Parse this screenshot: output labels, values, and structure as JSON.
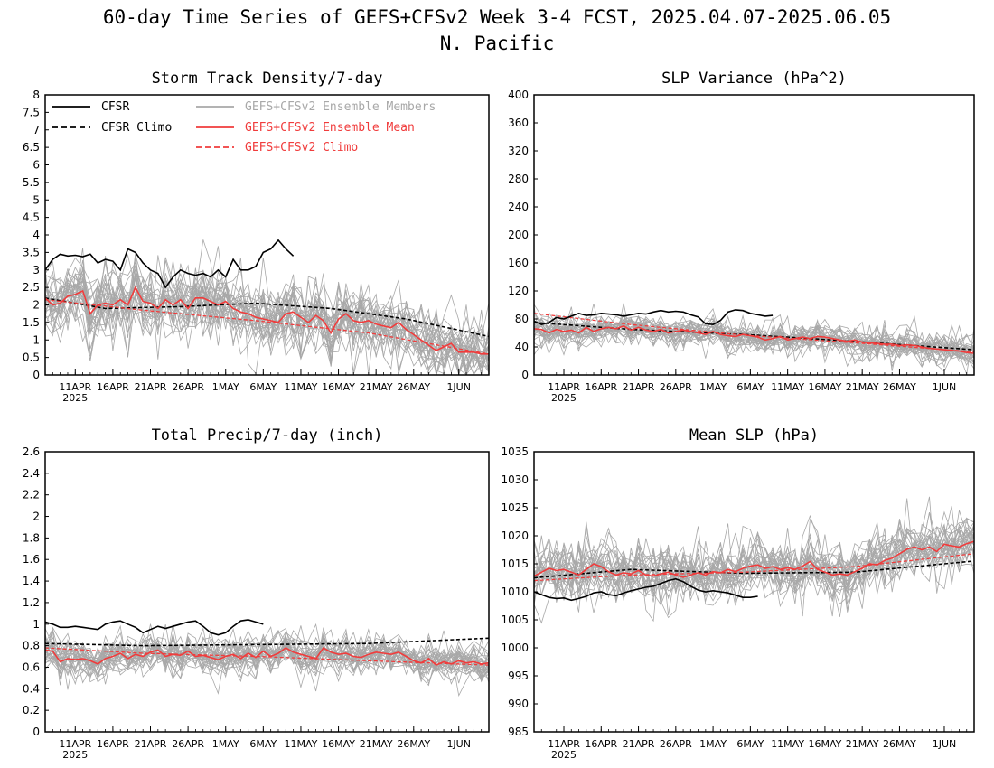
{
  "figure": {
    "title_line1": "60-day Time Series of GEFS+CFSv2 Week 3-4 FCST, 2025.04.07-2025.06.05",
    "title_line2": "N. Pacific"
  },
  "colors": {
    "cfsr": "#000000",
    "members": "#a8a8a8",
    "ens_mean": "#f03c3c",
    "legend_members_text": "#a8a8a8",
    "legend_red_text": "#f03c3c"
  },
  "legend": {
    "placement": "top-left of first panel",
    "entries": [
      {
        "key": "cfsr",
        "label": "CFSR",
        "style": "solid",
        "color": "#000000"
      },
      {
        "key": "cfsr_climo",
        "label": "CFSR Climo",
        "style": "dashed",
        "color": "#000000"
      },
      {
        "key": "members",
        "label": "GEFS+CFSv2 Ensemble Members",
        "style": "solid",
        "color": "#a8a8a8"
      },
      {
        "key": "ens_mean",
        "label": "GEFS+CFSv2 Ensemble Mean",
        "style": "solid",
        "color": "#f03c3c"
      },
      {
        "key": "ens_climo",
        "label": "GEFS+CFSv2 Climo",
        "style": "dashed",
        "color": "#f03c3c"
      }
    ]
  },
  "chart_data": [
    {
      "type": "line",
      "title": "Storm Track Density/7-day",
      "xlim": [
        "2025-04-07",
        "2025-06-05"
      ],
      "xticks": [
        {
          "date": "2025-04-11",
          "label": "11APR",
          "sub": "2025"
        },
        {
          "date": "2025-04-16",
          "label": "16APR",
          "sub": ""
        },
        {
          "date": "2025-04-21",
          "label": "21APR",
          "sub": ""
        },
        {
          "date": "2025-04-26",
          "label": "26APR",
          "sub": ""
        },
        {
          "date": "2025-05-01",
          "label": "1MAY",
          "sub": ""
        },
        {
          "date": "2025-05-06",
          "label": "6MAY",
          "sub": ""
        },
        {
          "date": "2025-05-11",
          "label": "11MAY",
          "sub": ""
        },
        {
          "date": "2025-05-16",
          "label": "16MAY",
          "sub": ""
        },
        {
          "date": "2025-05-21",
          "label": "21MAY",
          "sub": ""
        },
        {
          "date": "2025-05-26",
          "label": "26MAY",
          "sub": ""
        },
        {
          "date": "2025-06-01",
          "label": "1JUN",
          "sub": ""
        }
      ],
      "ylim": [
        0,
        8
      ],
      "yticks": [
        "0",
        "0.5",
        "1",
        "1.5",
        "2",
        "2.5",
        "3",
        "3.5",
        "4",
        "4.5",
        "5",
        "5.5",
        "6",
        "6.5",
        "7",
        "7.5",
        "8"
      ],
      "show_legend": true,
      "cfsr": {
        "start": "2025-04-07",
        "values": [
          3.0,
          3.3,
          3.45,
          3.4,
          3.42,
          3.38,
          3.45,
          3.2,
          3.3,
          3.25,
          3.0,
          3.6,
          3.5,
          3.2,
          3.0,
          2.9,
          2.5,
          2.8,
          3.0,
          2.9,
          2.85,
          2.9,
          2.8,
          3.0,
          2.8,
          3.3,
          3.0,
          3.0,
          3.1,
          3.5,
          3.6,
          3.85,
          3.6,
          3.4
        ]
      },
      "cfsr_climo": {
        "x": [
          "2025-04-07",
          "2025-04-15",
          "2025-04-25",
          "2025-05-05",
          "2025-05-15",
          "2025-05-25",
          "2025-06-05"
        ],
        "values": [
          2.2,
          1.9,
          1.95,
          2.05,
          1.9,
          1.6,
          1.1
        ]
      },
      "ens_climo": {
        "x": [
          "2025-04-07",
          "2025-04-20",
          "2025-05-05",
          "2025-05-20",
          "2025-06-05"
        ],
        "values": [
          2.15,
          1.85,
          1.55,
          1.2,
          0.6
        ]
      },
      "ens_mean": {
        "start": "2025-04-07",
        "values": [
          2.2,
          2.0,
          2.05,
          2.25,
          2.3,
          2.4,
          1.75,
          2.0,
          2.05,
          2.0,
          2.15,
          2.0,
          2.5,
          2.1,
          2.05,
          1.9,
          2.15,
          2.0,
          2.15,
          1.9,
          2.2,
          2.2,
          2.1,
          2.0,
          2.1,
          1.9,
          1.8,
          1.75,
          1.65,
          1.6,
          1.55,
          1.5,
          1.75,
          1.8,
          1.65,
          1.5,
          1.7,
          1.55,
          1.2,
          1.6,
          1.75,
          1.55,
          1.5,
          1.55,
          1.45,
          1.4,
          1.35,
          1.5,
          1.3,
          1.15,
          1.0,
          0.85,
          0.7,
          0.8,
          0.9,
          0.65,
          0.65,
          0.65,
          0.6,
          0.6
        ]
      },
      "members": {
        "count": 30,
        "spread": 0.85,
        "center": "ens_mean"
      }
    },
    {
      "type": "line",
      "title": "SLP Variance (hPa^2)",
      "xlim": [
        "2025-04-07",
        "2025-06-05"
      ],
      "xticks": [
        {
          "date": "2025-04-11",
          "label": "11APR",
          "sub": "2025"
        },
        {
          "date": "2025-04-16",
          "label": "16APR",
          "sub": ""
        },
        {
          "date": "2025-04-21",
          "label": "21APR",
          "sub": ""
        },
        {
          "date": "2025-04-26",
          "label": "26APR",
          "sub": ""
        },
        {
          "date": "2025-05-01",
          "label": "1MAY",
          "sub": ""
        },
        {
          "date": "2025-05-06",
          "label": "6MAY",
          "sub": ""
        },
        {
          "date": "2025-05-11",
          "label": "11MAY",
          "sub": ""
        },
        {
          "date": "2025-05-16",
          "label": "16MAY",
          "sub": ""
        },
        {
          "date": "2025-05-21",
          "label": "21MAY",
          "sub": ""
        },
        {
          "date": "2025-05-26",
          "label": "26MAY",
          "sub": ""
        },
        {
          "date": "2025-06-01",
          "label": "1JUN",
          "sub": ""
        }
      ],
      "ylim": [
        0,
        400
      ],
      "yticks": [
        "0",
        "40",
        "80",
        "120",
        "160",
        "200",
        "240",
        "280",
        "320",
        "360",
        "400"
      ],
      "show_legend": false,
      "cfsr": {
        "start": "2025-04-07",
        "values": [
          77,
          72,
          75,
          82,
          80,
          84,
          88,
          85,
          86,
          88,
          87,
          86,
          84,
          86,
          88,
          87,
          90,
          92,
          90,
          91,
          90,
          86,
          83,
          73,
          72,
          78,
          90,
          93,
          92,
          88,
          86,
          84,
          85
        ]
      },
      "cfsr_climo": {
        "x": [
          "2025-04-07",
          "2025-04-20",
          "2025-05-05",
          "2025-05-20",
          "2025-06-05"
        ],
        "values": [
          75,
          65,
          58,
          48,
          36
        ]
      },
      "ens_climo": {
        "x": [
          "2025-04-07",
          "2025-04-20",
          "2025-05-05",
          "2025-05-20",
          "2025-06-05"
        ],
        "values": [
          88,
          72,
          57,
          46,
          33
        ]
      },
      "ens_mean": {
        "start": "2025-04-07",
        "values": [
          66,
          65,
          60,
          65,
          62,
          64,
          60,
          68,
          62,
          66,
          68,
          66,
          70,
          64,
          68,
          64,
          62,
          65,
          60,
          62,
          64,
          62,
          60,
          58,
          62,
          58,
          56,
          55,
          58,
          56,
          54,
          50,
          52,
          55,
          50,
          52,
          54,
          52,
          55,
          54,
          52,
          50,
          48,
          50,
          47,
          46,
          45,
          44,
          44,
          42,
          43,
          42,
          40,
          38,
          37,
          36,
          35,
          34,
          32,
          31
        ]
      },
      "members": {
        "count": 30,
        "spread": 18,
        "center": "ens_mean"
      }
    },
    {
      "type": "line",
      "title": "Total Precip/7-day (inch)",
      "xlim": [
        "2025-04-07",
        "2025-06-05"
      ],
      "xticks": [
        {
          "date": "2025-04-11",
          "label": "11APR",
          "sub": "2025"
        },
        {
          "date": "2025-04-16",
          "label": "16APR",
          "sub": ""
        },
        {
          "date": "2025-04-21",
          "label": "21APR",
          "sub": ""
        },
        {
          "date": "2025-04-26",
          "label": "26APR",
          "sub": ""
        },
        {
          "date": "2025-05-01",
          "label": "1MAY",
          "sub": ""
        },
        {
          "date": "2025-05-06",
          "label": "6MAY",
          "sub": ""
        },
        {
          "date": "2025-05-11",
          "label": "11MAY",
          "sub": ""
        },
        {
          "date": "2025-05-16",
          "label": "16MAY",
          "sub": ""
        },
        {
          "date": "2025-05-21",
          "label": "21MAY",
          "sub": ""
        },
        {
          "date": "2025-05-26",
          "label": "26MAY",
          "sub": ""
        },
        {
          "date": "2025-06-01",
          "label": "1JUN",
          "sub": ""
        }
      ],
      "ylim": [
        0,
        2.6
      ],
      "yticks": [
        "0",
        "0.2",
        "0.4",
        "0.6",
        "0.8",
        "1",
        "1.2",
        "1.4",
        "1.6",
        "1.8",
        "2",
        "2.2",
        "2.4",
        "2.6"
      ],
      "show_legend": false,
      "cfsr": {
        "start": "2025-04-07",
        "values": [
          1.02,
          1.0,
          0.97,
          0.97,
          0.98,
          0.97,
          0.96,
          0.95,
          1.0,
          1.02,
          1.03,
          1.0,
          0.97,
          0.92,
          0.95,
          0.98,
          0.96,
          0.98,
          1.0,
          1.02,
          1.03,
          0.98,
          0.92,
          0.9,
          0.92,
          0.98,
          1.03,
          1.04,
          1.02,
          1.0
        ]
      },
      "cfsr_climo": {
        "x": [
          "2025-04-07",
          "2025-04-20",
          "2025-05-05",
          "2025-05-20",
          "2025-06-05"
        ],
        "values": [
          0.82,
          0.8,
          0.81,
          0.82,
          0.87
        ]
      },
      "ens_climo": {
        "x": [
          "2025-04-07",
          "2025-04-20",
          "2025-05-05",
          "2025-05-20",
          "2025-06-05"
        ],
        "values": [
          0.78,
          0.73,
          0.7,
          0.66,
          0.62
        ]
      },
      "ens_mean": {
        "start": "2025-04-07",
        "values": [
          0.76,
          0.75,
          0.65,
          0.68,
          0.67,
          0.68,
          0.66,
          0.63,
          0.68,
          0.7,
          0.73,
          0.68,
          0.72,
          0.7,
          0.74,
          0.76,
          0.7,
          0.72,
          0.71,
          0.75,
          0.7,
          0.71,
          0.69,
          0.67,
          0.7,
          0.72,
          0.68,
          0.73,
          0.69,
          0.75,
          0.7,
          0.73,
          0.78,
          0.74,
          0.72,
          0.7,
          0.68,
          0.78,
          0.74,
          0.72,
          0.73,
          0.7,
          0.69,
          0.72,
          0.74,
          0.73,
          0.72,
          0.74,
          0.7,
          0.66,
          0.64,
          0.68,
          0.62,
          0.65,
          0.63,
          0.66,
          0.64,
          0.65,
          0.63,
          0.64
        ]
      },
      "members": {
        "count": 30,
        "spread": 0.16,
        "center": "ens_mean"
      }
    },
    {
      "type": "line",
      "title": "Mean SLP (hPa)",
      "xlim": [
        "2025-04-07",
        "2025-06-05"
      ],
      "xticks": [
        {
          "date": "2025-04-11",
          "label": "11APR",
          "sub": "2025"
        },
        {
          "date": "2025-04-16",
          "label": "16APR",
          "sub": ""
        },
        {
          "date": "2025-04-21",
          "label": "21APR",
          "sub": ""
        },
        {
          "date": "2025-04-26",
          "label": "26APR",
          "sub": ""
        },
        {
          "date": "2025-05-01",
          "label": "1MAY",
          "sub": ""
        },
        {
          "date": "2025-05-06",
          "label": "6MAY",
          "sub": ""
        },
        {
          "date": "2025-05-11",
          "label": "11MAY",
          "sub": ""
        },
        {
          "date": "2025-05-16",
          "label": "16MAY",
          "sub": ""
        },
        {
          "date": "2025-05-21",
          "label": "21MAY",
          "sub": ""
        },
        {
          "date": "2025-05-26",
          "label": "26MAY",
          "sub": ""
        },
        {
          "date": "2025-06-01",
          "label": "1JUN",
          "sub": ""
        }
      ],
      "ylim": [
        985,
        1035
      ],
      "yticks": [
        "985",
        "990",
        "995",
        "1000",
        "1005",
        "1010",
        "1015",
        "1020",
        "1025",
        "1030",
        "1035"
      ],
      "show_legend": false,
      "cfsr": {
        "start": "2025-04-07",
        "values": [
          1010.0,
          1009.5,
          1009.0,
          1008.8,
          1008.9,
          1008.5,
          1008.8,
          1009.2,
          1009.8,
          1010.0,
          1009.5,
          1009.3,
          1009.8,
          1010.2,
          1010.5,
          1010.8,
          1011.0,
          1011.5,
          1012.0,
          1012.3,
          1011.8,
          1011.0,
          1010.3,
          1010.0,
          1010.2,
          1010.0,
          1009.8,
          1009.4,
          1009.0,
          1009.0,
          1009.2
        ]
      },
      "cfsr_climo": {
        "x": [
          "2025-04-07",
          "2025-04-20",
          "2025-05-05",
          "2025-05-20",
          "2025-06-05"
        ],
        "values": [
          1012.5,
          1014.0,
          1013.3,
          1013.5,
          1015.5
        ]
      },
      "ens_climo": {
        "x": [
          "2025-04-07",
          "2025-04-20",
          "2025-05-05",
          "2025-05-20",
          "2025-06-05"
        ],
        "values": [
          1012.0,
          1013.0,
          1013.5,
          1014.5,
          1016.8
        ]
      },
      "ens_mean": {
        "start": "2025-04-07",
        "values": [
          1012.8,
          1013.5,
          1014.2,
          1013.8,
          1014.0,
          1013.5,
          1013.0,
          1014.0,
          1015.0,
          1014.5,
          1013.6,
          1013.0,
          1013.4,
          1013.2,
          1013.8,
          1013.0,
          1012.8,
          1013.2,
          1013.5,
          1013.0,
          1012.6,
          1013.0,
          1013.4,
          1013.0,
          1013.6,
          1013.4,
          1014.0,
          1013.6,
          1014.2,
          1014.6,
          1014.8,
          1014.2,
          1014.5,
          1014.0,
          1014.3,
          1014.0,
          1014.6,
          1015.4,
          1014.0,
          1013.5,
          1013.0,
          1013.2,
          1013.0,
          1013.6,
          1014.2,
          1015.0,
          1014.8,
          1015.6,
          1016.0,
          1016.8,
          1017.6,
          1018.0,
          1017.5,
          1018.0,
          1017.2,
          1018.5,
          1018.2,
          1018.0,
          1018.6,
          1019.0
        ]
      },
      "members": {
        "count": 30,
        "spread": 4.5,
        "center": "ens_mean"
      }
    }
  ]
}
